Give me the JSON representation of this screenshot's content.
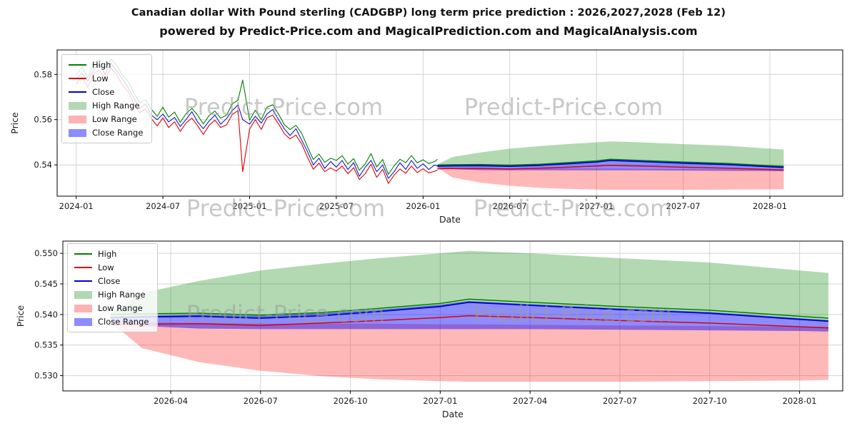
{
  "header": {
    "title": "Canadian dollar With Pound sterling (CADGBP) long term price prediction : 2026,2027,2028 (Feb 12)",
    "subtitle": "powered by Predict-Price.com and MagicalPrediction.com and MagicalAnalysis.com"
  },
  "watermark": {
    "text": "Predict-Price.com"
  },
  "colors": {
    "high_line": "#008000",
    "low_line": "#dd0000",
    "close_line": "#0000cc",
    "high_range_fill": "rgba(0,128,0,0.30)",
    "low_range_fill": "rgba(255,20,20,0.30)",
    "close_range_fill": "rgba(0,0,255,0.45)",
    "grid": "#d4d4d4"
  },
  "legend": [
    {
      "label": "High",
      "swatch": "line",
      "color": "#008000"
    },
    {
      "label": "Low",
      "swatch": "line",
      "color": "#dd0000"
    },
    {
      "label": "Close",
      "swatch": "line",
      "color": "#0000cc"
    },
    {
      "label": "High Range",
      "swatch": "patch",
      "color": "#b2d8b2"
    },
    {
      "label": "Low Range",
      "swatch": "patch",
      "color": "#ffb2b2"
    },
    {
      "label": "Close Range",
      "swatch": "patch",
      "color": "#8c8cff"
    }
  ],
  "history": {
    "t": [
      2024.0,
      2024.033,
      2024.067,
      2024.1,
      2024.133,
      2024.167,
      2024.2,
      2024.233,
      2024.267,
      2024.3,
      2024.333,
      2024.367,
      2024.4,
      2024.433,
      2024.467,
      2024.5,
      2024.533,
      2024.567,
      2024.6,
      2024.633,
      2024.667,
      2024.7,
      2024.733,
      2024.767,
      2024.8,
      2024.833,
      2024.867,
      2024.9,
      2024.933,
      2024.96,
      2025.0,
      2025.033,
      2025.067,
      2025.1,
      2025.133,
      2025.167,
      2025.2,
      2025.233,
      2025.267,
      2025.3,
      2025.333,
      2025.367,
      2025.4,
      2025.433,
      2025.467,
      2025.5,
      2025.533,
      2025.567,
      2025.6,
      2025.633,
      2025.667,
      2025.7,
      2025.733,
      2025.767,
      2025.8,
      2025.833,
      2025.867,
      2025.9,
      2025.933,
      2025.967,
      2026.0,
      2026.033,
      2026.067,
      2026.083
    ],
    "close": [
      0.578,
      0.5805,
      0.577,
      0.582,
      0.5845,
      0.58,
      0.585,
      0.5815,
      0.578,
      0.574,
      0.5695,
      0.565,
      0.567,
      0.562,
      0.56,
      0.5625,
      0.559,
      0.561,
      0.557,
      0.56,
      0.5635,
      0.559,
      0.556,
      0.5595,
      0.562,
      0.558,
      0.5605,
      0.564,
      0.5665,
      0.56,
      0.558,
      0.5615,
      0.5585,
      0.5625,
      0.5645,
      0.56,
      0.556,
      0.553,
      0.556,
      0.551,
      0.546,
      0.54,
      0.543,
      0.5385,
      0.5415,
      0.539,
      0.542,
      0.538,
      0.541,
      0.535,
      0.539,
      0.542,
      0.537,
      0.54,
      0.534,
      0.537,
      0.541,
      0.538,
      0.542,
      0.5385,
      0.5405,
      0.538,
      0.54,
      0.5395
    ],
    "high": [
      0.5798,
      0.5831,
      0.5785,
      0.585,
      0.5866,
      0.5824,
      0.5868,
      0.5841,
      0.5795,
      0.577,
      0.5716,
      0.5674,
      0.5688,
      0.5646,
      0.5615,
      0.5655,
      0.5611,
      0.5634,
      0.5588,
      0.5626,
      0.565,
      0.562,
      0.5581,
      0.5619,
      0.5638,
      0.5606,
      0.562,
      0.567,
      0.5686,
      0.5775,
      0.5598,
      0.5641,
      0.56,
      0.5655,
      0.5666,
      0.5624,
      0.5578,
      0.5556,
      0.5575,
      0.554,
      0.5481,
      0.5424,
      0.5448,
      0.5411,
      0.543,
      0.542,
      0.5441,
      0.5404,
      0.5428,
      0.5376,
      0.5405,
      0.545,
      0.5391,
      0.5424,
      0.5358,
      0.5396,
      0.5425,
      0.541,
      0.5441,
      0.5409,
      0.5423,
      0.5406,
      0.5415,
      0.5425
    ],
    "low": [
      0.5758,
      0.579,
      0.5742,
      0.5803,
      0.582,
      0.5781,
      0.5828,
      0.58,
      0.5752,
      0.5723,
      0.567,
      0.5631,
      0.5648,
      0.5605,
      0.5572,
      0.5608,
      0.5565,
      0.5591,
      0.5548,
      0.5585,
      0.5607,
      0.5573,
      0.5535,
      0.5576,
      0.5598,
      0.5565,
      0.5577,
      0.5623,
      0.564,
      0.537,
      0.5558,
      0.56,
      0.5557,
      0.5608,
      0.562,
      0.5581,
      0.5538,
      0.5515,
      0.5532,
      0.5493,
      0.5435,
      0.5381,
      0.5408,
      0.537,
      0.5387,
      0.5373,
      0.5395,
      0.5361,
      0.5388,
      0.5335,
      0.5362,
      0.5403,
      0.5345,
      0.5381,
      0.5318,
      0.5355,
      0.5382,
      0.5363,
      0.5395,
      0.5366,
      0.5383,
      0.5365,
      0.5372,
      0.5378
    ]
  },
  "forecast": {
    "t": [
      2026.083,
      2026.17,
      2026.33,
      2026.5,
      2026.67,
      2026.83,
      2027.0,
      2027.08,
      2027.25,
      2027.5,
      2027.75,
      2028.0,
      2028.08
    ],
    "close": [
      0.5395,
      0.5396,
      0.5397,
      0.5394,
      0.5398,
      0.5405,
      0.5413,
      0.542,
      0.5415,
      0.5408,
      0.5402,
      0.5392,
      0.5389
    ],
    "high": [
      0.54,
      0.5401,
      0.5402,
      0.5399,
      0.5403,
      0.541,
      0.5418,
      0.5425,
      0.542,
      0.5413,
      0.5407,
      0.5397,
      0.5394
    ],
    "low": [
      0.5383,
      0.5384,
      0.5385,
      0.5382,
      0.5386,
      0.539,
      0.5395,
      0.5398,
      0.5395,
      0.539,
      0.5386,
      0.538,
      0.5378
    ],
    "high_range_upper": [
      0.5402,
      0.5435,
      0.5455,
      0.5472,
      0.5483,
      0.5492,
      0.55,
      0.5504,
      0.55,
      0.5492,
      0.5485,
      0.5472,
      0.5468
    ],
    "low_range_upper": [
      0.539,
      0.5387,
      0.5386,
      0.5385,
      0.5385,
      0.5385,
      0.5384,
      0.5384,
      0.5383,
      0.5382,
      0.5381,
      0.538,
      0.538
    ],
    "low_range_lower": [
      0.5388,
      0.5345,
      0.5322,
      0.5308,
      0.5299,
      0.5294,
      0.5291,
      0.529,
      0.529,
      0.529,
      0.5291,
      0.5292,
      0.5293
    ],
    "close_range_upper": [
      0.5396,
      0.5398,
      0.54,
      0.5398,
      0.5402,
      0.5408,
      0.5416,
      0.5422,
      0.5417,
      0.541,
      0.5404,
      0.5394,
      0.5391
    ],
    "close_range_lower": [
      0.5388,
      0.5381,
      0.5377,
      0.5376,
      0.5376,
      0.5376,
      0.5376,
      0.5376,
      0.5376,
      0.5375,
      0.5374,
      0.5373,
      0.5372
    ]
  },
  "chart_data": [
    {
      "type": "line",
      "title": "CADGBP history and 2026-2028 forecast",
      "xlabel": "Date",
      "ylabel": "Price",
      "xlim": [
        2023.89,
        2028.42
      ],
      "ylim": [
        0.5262,
        0.5908
      ],
      "grid": true,
      "legend_position": "upper-left",
      "xticks": [
        {
          "v": 2024.0,
          "label": "2024-01"
        },
        {
          "v": 2024.5,
          "label": "2024-07"
        },
        {
          "v": 2025.0,
          "label": "2025-01"
        },
        {
          "v": 2025.5,
          "label": "2025-07"
        },
        {
          "v": 2026.0,
          "label": "2026-01"
        },
        {
          "v": 2026.5,
          "label": "2026-07"
        },
        {
          "v": 2027.0,
          "label": "2027-01"
        },
        {
          "v": 2027.5,
          "label": "2027-07"
        },
        {
          "v": 2028.0,
          "label": "2028-01"
        }
      ],
      "yticks": [
        {
          "v": 0.54,
          "label": "0.54"
        },
        {
          "v": 0.56,
          "label": "0.56"
        },
        {
          "v": 0.58,
          "label": "0.58"
        }
      ],
      "bands": [
        {
          "name": "high-range",
          "color": "rgba(0,128,0,0.30)",
          "x": "forecast.t",
          "upper": "forecast.high_range_upper",
          "lower": "forecast.close"
        },
        {
          "name": "low-range",
          "color": "rgba(255,20,20,0.30)",
          "x": "forecast.t",
          "upper": "forecast.low_range_upper",
          "lower": "forecast.low_range_lower"
        },
        {
          "name": "close-range",
          "color": "rgba(0,0,255,0.45)",
          "x": "forecast.t",
          "upper": "forecast.close_range_upper",
          "lower": "forecast.close_range_lower"
        }
      ],
      "series": [
        {
          "name": "close-history",
          "color": "#0000cc",
          "width": 1,
          "x": "history.t",
          "y": "history.close"
        },
        {
          "name": "high-history",
          "color": "#008000",
          "width": 1.1,
          "x": "history.t",
          "y": "history.high"
        },
        {
          "name": "low-history",
          "color": "#dd0000",
          "width": 1.1,
          "x": "history.t",
          "y": "history.low"
        },
        {
          "name": "high-forecast",
          "color": "#008000",
          "width": 1.5,
          "x": "forecast.t",
          "y": "forecast.high"
        },
        {
          "name": "low-forecast",
          "color": "#dd0000",
          "width": 1.5,
          "x": "forecast.t",
          "y": "forecast.low"
        },
        {
          "name": "close-forecast",
          "color": "#0000cc",
          "width": 1.8,
          "x": "forecast.t",
          "y": "forecast.close"
        }
      ]
    },
    {
      "type": "line",
      "title": "CADGBP 2026-2028 forecast detail",
      "xlabel": "Date",
      "ylabel": "Price",
      "xlim": [
        2025.95,
        2028.12
      ],
      "ylim": [
        0.5275,
        0.552
      ],
      "grid": true,
      "legend_position": "upper-left",
      "xticks": [
        {
          "v": 2026.25,
          "label": "2026-04"
        },
        {
          "v": 2026.5,
          "label": "2026-07"
        },
        {
          "v": 2026.75,
          "label": "2026-10"
        },
        {
          "v": 2027.0,
          "label": "2027-01"
        },
        {
          "v": 2027.25,
          "label": "2027-04"
        },
        {
          "v": 2027.5,
          "label": "2027-07"
        },
        {
          "v": 2027.75,
          "label": "2027-10"
        },
        {
          "v": 2028.0,
          "label": "2028-01"
        }
      ],
      "yticks": [
        {
          "v": 0.53,
          "label": "0.530"
        },
        {
          "v": 0.535,
          "label": "0.535"
        },
        {
          "v": 0.54,
          "label": "0.540"
        },
        {
          "v": 0.545,
          "label": "0.545"
        },
        {
          "v": 0.55,
          "label": "0.550"
        }
      ],
      "bands": [
        {
          "name": "high-range",
          "color": "rgba(0,128,0,0.30)",
          "x": "forecast.t",
          "upper": "forecast.high_range_upper",
          "lower": "forecast.close"
        },
        {
          "name": "low-range",
          "color": "rgba(255,20,20,0.30)",
          "x": "forecast.t",
          "upper": "forecast.low_range_upper",
          "lower": "forecast.low_range_lower"
        },
        {
          "name": "close-range",
          "color": "rgba(0,0,255,0.45)",
          "x": "forecast.t",
          "upper": "forecast.close_range_upper",
          "lower": "forecast.close_range_lower"
        }
      ],
      "series": [
        {
          "name": "high-forecast",
          "color": "#008000",
          "width": 1.5,
          "x": "forecast.t",
          "y": "forecast.high"
        },
        {
          "name": "low-forecast",
          "color": "#dd0000",
          "width": 1.5,
          "x": "forecast.t",
          "y": "forecast.low"
        },
        {
          "name": "close-forecast",
          "color": "#0000cc",
          "width": 1.8,
          "x": "forecast.t",
          "y": "forecast.close"
        }
      ]
    }
  ]
}
